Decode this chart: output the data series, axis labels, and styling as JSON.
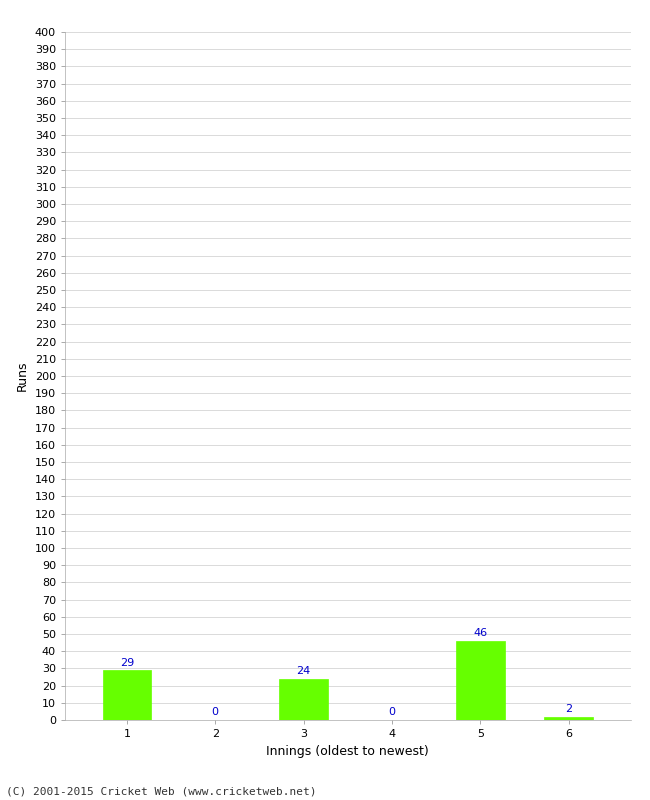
{
  "innings": [
    1,
    2,
    3,
    4,
    5,
    6
  ],
  "runs": [
    29,
    0,
    24,
    0,
    46,
    2
  ],
  "bar_color": "#66ff00",
  "bar_edge_color": "#66ff00",
  "label_color": "#0000cc",
  "xlabel": "Innings (oldest to newest)",
  "ylabel": "Runs",
  "ylim": [
    0,
    400
  ],
  "yticks": [
    0,
    10,
    20,
    30,
    40,
    50,
    60,
    70,
    80,
    90,
    100,
    110,
    120,
    130,
    140,
    150,
    160,
    170,
    180,
    190,
    200,
    210,
    220,
    230,
    240,
    250,
    260,
    270,
    280,
    290,
    300,
    310,
    320,
    330,
    340,
    350,
    360,
    370,
    380,
    390,
    400
  ],
  "footer": "(C) 2001-2015 Cricket Web (www.cricketweb.net)",
  "background_color": "#ffffff",
  "grid_color": "#cccccc",
  "label_fontsize": 9,
  "tick_fontsize": 8,
  "footer_fontsize": 8,
  "bar_width": 0.55
}
